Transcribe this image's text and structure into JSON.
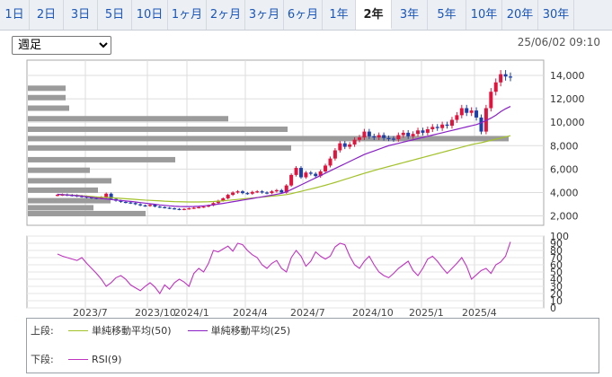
{
  "tabs": [
    {
      "label": "1日"
    },
    {
      "label": "2日"
    },
    {
      "label": "3日"
    },
    {
      "label": "5日"
    },
    {
      "label": "10日"
    },
    {
      "label": "1ヶ月"
    },
    {
      "label": "2ヶ月"
    },
    {
      "label": "3ヶ月"
    },
    {
      "label": "6ヶ月"
    },
    {
      "label": "1年"
    },
    {
      "label": "2年",
      "active": true
    },
    {
      "label": "3年"
    },
    {
      "label": "5年"
    },
    {
      "label": "10年"
    },
    {
      "label": "20年"
    },
    {
      "label": "30年"
    }
  ],
  "period_select": {
    "value": "週足"
  },
  "datetime": "25/06/02 09:10",
  "legend": {
    "upper_label": "上段:",
    "lower_label": "下段:",
    "items_upper": [
      {
        "name": "単純移動平均(50)",
        "color": "#a3c22a"
      },
      {
        "name": "単純移動平均(25)",
        "color": "#8a1fc7"
      }
    ],
    "items_lower": [
      {
        "name": "RSI(9)",
        "color": "#c033c0"
      }
    ]
  },
  "chart_data": {
    "type": "candlestick",
    "x_tick_labels": [
      "2023/7",
      "2023/10",
      "2024/1",
      "2024/4",
      "2024/7",
      "2024/10",
      "2025/1",
      "2025/4"
    ],
    "price_axis": {
      "ticks": [
        2000,
        4000,
        6000,
        8000,
        10000,
        12000,
        14000
      ],
      "range": [
        1200,
        15300
      ]
    },
    "rsi_axis": {
      "ticks": [
        0,
        10,
        20,
        30,
        40,
        50,
        60,
        70,
        80,
        90,
        100
      ],
      "range": [
        0,
        100
      ]
    },
    "close": [
      3800,
      3820,
      3780,
      3750,
      3700,
      3650,
      3600,
      3550,
      3520,
      3600,
      3900,
      3450,
      3300,
      3200,
      3150,
      3100,
      3000,
      2900,
      2850,
      2950,
      2800,
      2750,
      2700,
      2650,
      2600,
      2550,
      2600,
      2650,
      2700,
      2750,
      2800,
      2900,
      3100,
      3300,
      3500,
      3800,
      4000,
      4100,
      3950,
      3900,
      4050,
      4100,
      4000,
      3950,
      4100,
      4200,
      4000,
      4600,
      5500,
      6100,
      5300,
      5700,
      5600,
      5400,
      5800,
      6300,
      6900,
      7600,
      8200,
      7900,
      8100,
      8500,
      8700,
      9200,
      8800,
      8700,
      8900,
      8650,
      8600,
      8550,
      8900,
      9100,
      8800,
      9000,
      9300,
      9100,
      9400,
      9600,
      9500,
      9800,
      9700,
      10200,
      10600,
      11200,
      10800,
      11000,
      10400,
      9200,
      11200,
      12600,
      13400,
      14100,
      13900,
      13850
    ],
    "ohlc_note": "weekly candles, red=up, blue=down",
    "sma50": [
      3850,
      3830,
      3800,
      3780,
      3760,
      3720,
      3690,
      3660,
      3630,
      3600,
      3580,
      3560,
      3530,
      3500,
      3470,
      3440,
      3410,
      3380,
      3350,
      3330,
      3310,
      3290,
      3260,
      3240,
      3220,
      3210,
      3200,
      3190,
      3190,
      3190,
      3200,
      3210,
      3230,
      3260,
      3290,
      3330,
      3370,
      3410,
      3450,
      3490,
      3530,
      3570,
      3610,
      3650,
      3690,
      3730,
      3770,
      3820,
      3900,
      4000,
      4100,
      4200,
      4300,
      4400,
      4510,
      4620,
      4740,
      4860,
      4990,
      5120,
      5250,
      5380,
      5510,
      5640,
      5760,
      5880,
      6000,
      6110,
      6220,
      6330,
      6440,
      6550,
      6660,
      6770,
      6880,
      6990,
      7100,
      7210,
      7320,
      7430,
      7540,
      7650,
      7760,
      7870,
      7980,
      8090,
      8180,
      8250,
      8350,
      8450,
      8550,
      8650,
      8750,
      8850
    ],
    "sma25": [
      3850,
      3820,
      3790,
      3760,
      3730,
      3690,
      3640,
      3590,
      3540,
      3490,
      3450,
      3400,
      3360,
      3320,
      3280,
      3240,
      3190,
      3140,
      3090,
      3040,
      2990,
      2940,
      2900,
      2860,
      2830,
      2810,
      2800,
      2800,
      2810,
      2830,
      2860,
      2900,
      2950,
      3010,
      3070,
      3140,
      3210,
      3280,
      3350,
      3420,
      3490,
      3560,
      3630,
      3700,
      3770,
      3850,
      3930,
      4050,
      4250,
      4450,
      4650,
      4850,
      5050,
      5250,
      5450,
      5650,
      5850,
      6050,
      6250,
      6450,
      6650,
      6850,
      7050,
      7250,
      7400,
      7550,
      7700,
      7850,
      8000,
      8100,
      8200,
      8300,
      8400,
      8500,
      8600,
      8700,
      8800,
      8900,
      9000,
      9100,
      9200,
      9300,
      9400,
      9500,
      9600,
      9700,
      9800,
      9950,
      10150,
      10350,
      10600,
      10900,
      11150,
      11350
    ],
    "volume_profile": [
      {
        "price": 2200,
        "width": 131
      },
      {
        "price": 2700,
        "width": 73
      },
      {
        "price": 3300,
        "width": 92
      },
      {
        "price": 4200,
        "width": 78
      },
      {
        "price": 5000,
        "width": 93
      },
      {
        "price": 5900,
        "width": 69
      },
      {
        "price": 6800,
        "width": 164
      },
      {
        "price": 7800,
        "width": 293
      },
      {
        "price": 8600,
        "width": 535
      },
      {
        "price": 9400,
        "width": 289
      },
      {
        "price": 10300,
        "width": 223
      },
      {
        "price": 11200,
        "width": 46
      },
      {
        "price": 12100,
        "width": 42
      },
      {
        "price": 12900,
        "width": 42
      }
    ],
    "rsi": [
      75,
      72,
      70,
      68,
      66,
      70,
      62,
      55,
      48,
      40,
      30,
      35,
      42,
      45,
      40,
      32,
      28,
      24,
      30,
      35,
      29,
      20,
      32,
      26,
      35,
      40,
      36,
      30,
      48,
      55,
      50,
      62,
      80,
      78,
      82,
      86,
      79,
      90,
      88,
      80,
      74,
      70,
      60,
      55,
      62,
      66,
      55,
      50,
      70,
      80,
      72,
      58,
      65,
      78,
      72,
      68,
      72,
      85,
      90,
      88,
      72,
      60,
      55,
      65,
      72,
      60,
      50,
      45,
      42,
      48,
      55,
      60,
      65,
      52,
      45,
      55,
      68,
      72,
      65,
      56,
      48,
      55,
      62,
      70,
      58,
      40,
      46,
      52,
      55,
      48,
      60,
      64,
      72,
      92
    ]
  }
}
